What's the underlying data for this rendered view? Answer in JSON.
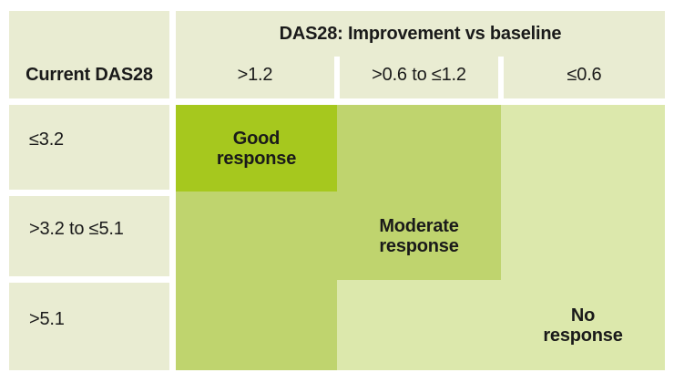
{
  "colors": {
    "page_bg": "#ffffff",
    "header_bg": "#e9ecd2",
    "text": "#1a1a1a",
    "zones": {
      "good": "#a6c81e",
      "moderate": "#bfd46e",
      "none": "#dce8ac"
    }
  },
  "table": {
    "corner_header": "Current DAS28",
    "group_title": "DAS28: Improvement vs baseline",
    "column_headers": [
      ">1.2",
      ">0.6 to ≤1.2",
      "≤0.6"
    ],
    "row_headers": [
      "≤3.2",
      ">3.2 to ≤5.1",
      ">5.1"
    ],
    "cell_zones": [
      [
        "good",
        "moderate",
        "none"
      ],
      [
        "moderate",
        "moderate",
        "none"
      ],
      [
        "moderate",
        "none",
        "none"
      ]
    ],
    "zone_labels": {
      "good": {
        "line1": "Good",
        "line2": "response"
      },
      "moderate": {
        "line1": "Moderate",
        "line2": "response"
      },
      "none": {
        "line1": "No",
        "line2": "response"
      }
    },
    "zone_label_positions": {
      "good": [
        0,
        0
      ],
      "moderate": [
        1,
        1
      ],
      "none": [
        2,
        2
      ]
    }
  },
  "chart_data": {
    "type": "table",
    "title": "DAS28: Improvement vs baseline",
    "row_axis_label": "Current DAS28",
    "columns": [
      ">1.2",
      ">0.6 to ≤1.2",
      "≤0.6"
    ],
    "rows": [
      "≤3.2",
      ">3.2 to ≤5.1",
      ">5.1"
    ],
    "cells": [
      [
        "Good response",
        "Moderate response",
        "No response"
      ],
      [
        "Moderate response",
        "Moderate response",
        "No response"
      ],
      [
        "Moderate response",
        "No response",
        "No response"
      ]
    ],
    "legend_position": "none",
    "grid": false
  }
}
